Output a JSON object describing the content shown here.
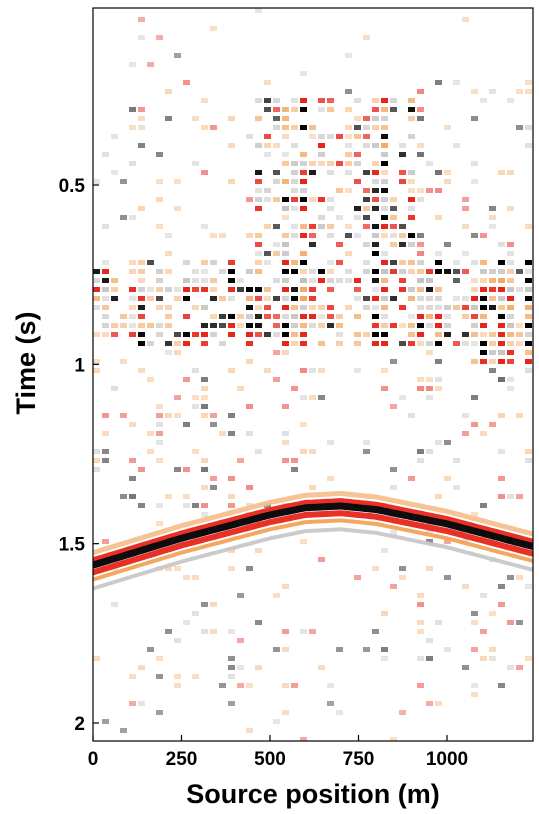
{
  "chart_data": {
    "type": "heatmap",
    "title": "",
    "xlabel": "Source position (m)",
    "ylabel": "Time (s)",
    "xlim": [
      0,
      1250
    ],
    "ylim": [
      2.05,
      0.0
    ],
    "x_ticks": [
      0,
      250,
      500,
      750,
      1000
    ],
    "x_tick_labels": [
      "0",
      "250",
      "500",
      "750",
      "1000"
    ],
    "y_ticks": [
      0.5,
      1,
      1.5,
      2
    ],
    "y_tick_labels": [
      "0.5",
      "1",
      "1.5",
      "2"
    ],
    "colormap": {
      "positive": "#e8251a",
      "positive_weak": "#f2a35a",
      "negative": "#000000",
      "negative_weak": "#b8b8b8",
      "zero": "#ffffff"
    },
    "reflector": {
      "description_points_x": [
        0,
        250,
        500,
        600,
        700,
        800,
        1000,
        1250
      ],
      "description_points_t": [
        1.575,
        1.5,
        1.435,
        1.415,
        1.41,
        1.42,
        1.46,
        1.525
      ]
    },
    "energy_zones": [
      {
        "x_range": [
          450,
          900
        ],
        "t_range": [
          0.25,
          0.9
        ]
      },
      {
        "x_range": [
          0,
          1250
        ],
        "t_range": [
          0.7,
          0.95
        ]
      },
      {
        "x_range": [
          1050,
          1250
        ],
        "t_range": [
          0.75,
          1.0
        ]
      }
    ]
  }
}
